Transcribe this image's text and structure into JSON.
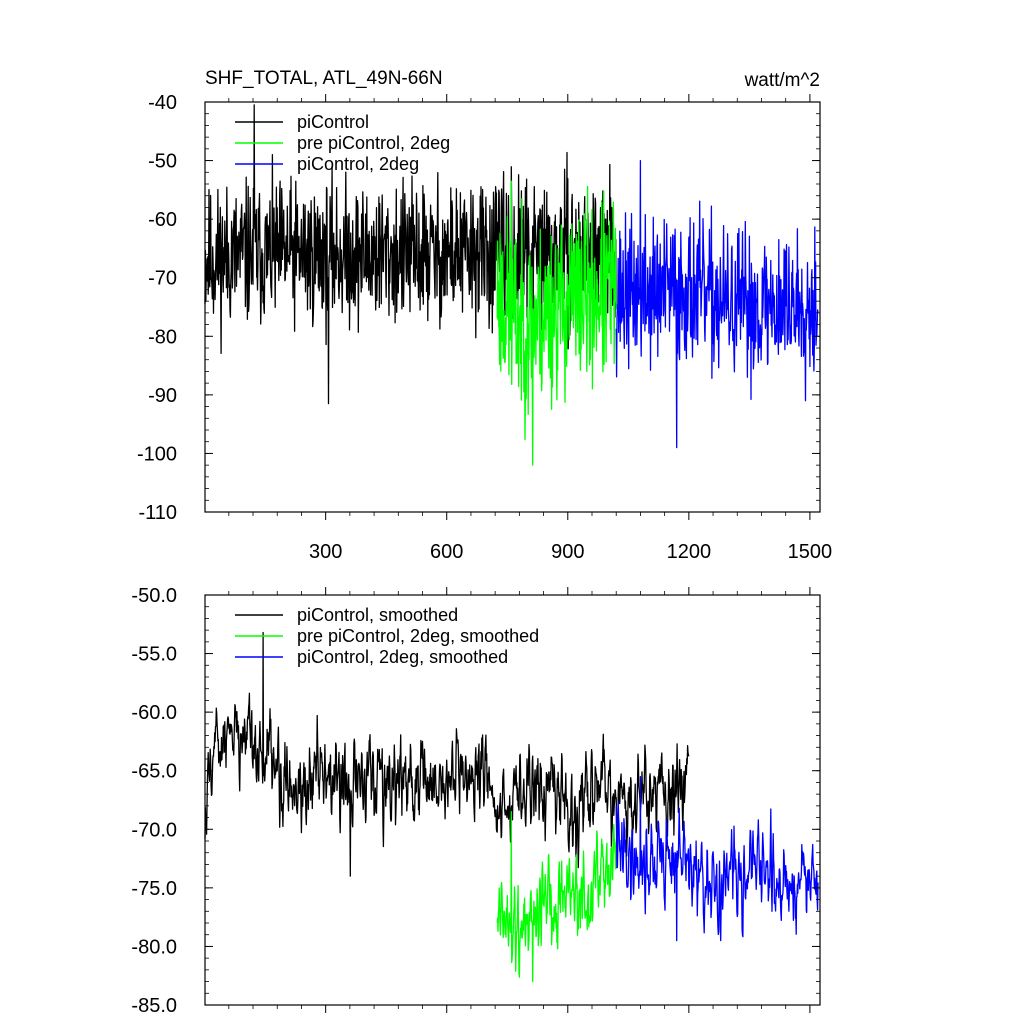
{
  "chart_data": [
    {
      "type": "line",
      "title": "SHF_TOTAL, ATL_49N-66N",
      "units": "watt/m^2",
      "xlim": [
        1,
        1525
      ],
      "ylim": [
        -110,
        -40
      ],
      "xticks": [
        {
          "value": 300,
          "label": "300"
        },
        {
          "value": 600,
          "label": "600"
        },
        {
          "value": 900,
          "label": "900"
        },
        {
          "value": 1200,
          "label": "1200"
        },
        {
          "value": 1500,
          "label": "1500"
        }
      ],
      "yticks": [
        {
          "value": -40,
          "label": "-40"
        },
        {
          "value": -50,
          "label": "-50"
        },
        {
          "value": -60,
          "label": "-60"
        },
        {
          "value": -70,
          "label": "-70"
        },
        {
          "value": -80,
          "label": "-80"
        },
        {
          "value": -90,
          "label": "-90"
        },
        {
          "value": -100,
          "label": "-100"
        },
        {
          "value": -110,
          "label": "-110"
        }
      ],
      "legend_position": "top-left",
      "series": [
        {
          "name": "piControl",
          "color": "#000000",
          "x_start": 1,
          "x_end": 1020,
          "anchors": [
            [
              1,
              -67
            ],
            [
              100,
              -66
            ],
            [
              300,
              -66
            ],
            [
              500,
              -66
            ],
            [
              700,
              -66
            ],
            [
              800,
              -66
            ],
            [
              1020,
              -66
            ]
          ],
          "noise": 6.0,
          "seed": 11,
          "smooth": 1,
          "min": -91.5,
          "max": -40.5
        },
        {
          "name": "pre piControl, 2deg",
          "color": "#00ff00",
          "x_start": 725,
          "x_end": 1020,
          "anchors": [
            [
              725,
              -72
            ],
            [
              760,
              -77
            ],
            [
              800,
              -78
            ],
            [
              900,
              -74
            ],
            [
              1020,
              -72
            ]
          ],
          "noise": 7.5,
          "seed": 23,
          "smooth": 1,
          "min": -102,
          "max": -53.5
        },
        {
          "name": "piControl, 2deg",
          "color": "#0000ff",
          "x_start": 1020,
          "x_end": 1520,
          "anchors": [
            [
              1020,
              -73
            ],
            [
              1200,
              -72
            ],
            [
              1300,
              -75
            ],
            [
              1400,
              -75
            ],
            [
              1520,
              -74
            ]
          ],
          "noise": 6.0,
          "seed": 37,
          "smooth": 1,
          "min": -99,
          "max": -50
        }
      ]
    },
    {
      "type": "line",
      "title": "",
      "xlim": [
        1,
        1525
      ],
      "ylim": [
        -85,
        -50
      ],
      "xticks": [
        {
          "value": 300,
          "label": ""
        },
        {
          "value": 600,
          "label": ""
        },
        {
          "value": 900,
          "label": ""
        },
        {
          "value": 1200,
          "label": ""
        },
        {
          "value": 1500,
          "label": ""
        }
      ],
      "yticks": [
        {
          "value": -50,
          "label": "-50.0"
        },
        {
          "value": -55,
          "label": "-55.0"
        },
        {
          "value": -60,
          "label": "-60.0"
        },
        {
          "value": -65,
          "label": "-65.0"
        },
        {
          "value": -70,
          "label": "-70.0"
        },
        {
          "value": -75,
          "label": "-75.0"
        },
        {
          "value": -80,
          "label": "-80.0"
        },
        {
          "value": -85,
          "label": "-85.0"
        }
      ],
      "legend_position": "top-left",
      "series": [
        {
          "name": "piControl, smoothed",
          "color": "#000000",
          "x_start": 1,
          "x_end": 1200,
          "anchors": [
            [
              1,
              -69
            ],
            [
              20,
              -62
            ],
            [
              60,
              -61
            ],
            [
              120,
              -63
            ],
            [
              200,
              -66
            ],
            [
              300,
              -66
            ],
            [
              400,
              -66
            ],
            [
              500,
              -66
            ],
            [
              600,
              -66
            ],
            [
              700,
              -65
            ],
            [
              740,
              -69
            ],
            [
              800,
              -67
            ],
            [
              850,
              -65
            ],
            [
              900,
              -68
            ],
            [
              960,
              -66
            ],
            [
              1020,
              -68
            ],
            [
              1100,
              -67
            ],
            [
              1200,
              -66
            ]
          ],
          "noise": 1.8,
          "seed": 5,
          "smooth": 3,
          "min": -74,
          "max": -53.2
        },
        {
          "name": "pre piControl, 2deg, smoothed",
          "color": "#00ff00",
          "x_start": 725,
          "x_end": 1020,
          "anchors": [
            [
              725,
              -75
            ],
            [
              740,
              -78
            ],
            [
              780,
              -79
            ],
            [
              830,
              -76
            ],
            [
              900,
              -75
            ],
            [
              960,
              -76
            ],
            [
              1020,
              -71
            ]
          ],
          "noise": 1.8,
          "seed": 19,
          "smooth": 3,
          "min": -83,
          "max": -68.5
        },
        {
          "name": "piControl, 2deg, smoothed",
          "color": "#0000ff",
          "x_start": 1020,
          "x_end": 1520,
          "anchors": [
            [
              1020,
              -72
            ],
            [
              1100,
              -73
            ],
            [
              1150,
              -72
            ],
            [
              1200,
              -73
            ],
            [
              1250,
              -76
            ],
            [
              1300,
              -74
            ],
            [
              1350,
              -73
            ],
            [
              1400,
              -74
            ],
            [
              1450,
              -75
            ],
            [
              1520,
              -74
            ]
          ],
          "noise": 1.8,
          "seed": 41,
          "smooth": 3,
          "min": -79.5,
          "max": -65.5
        }
      ]
    }
  ]
}
